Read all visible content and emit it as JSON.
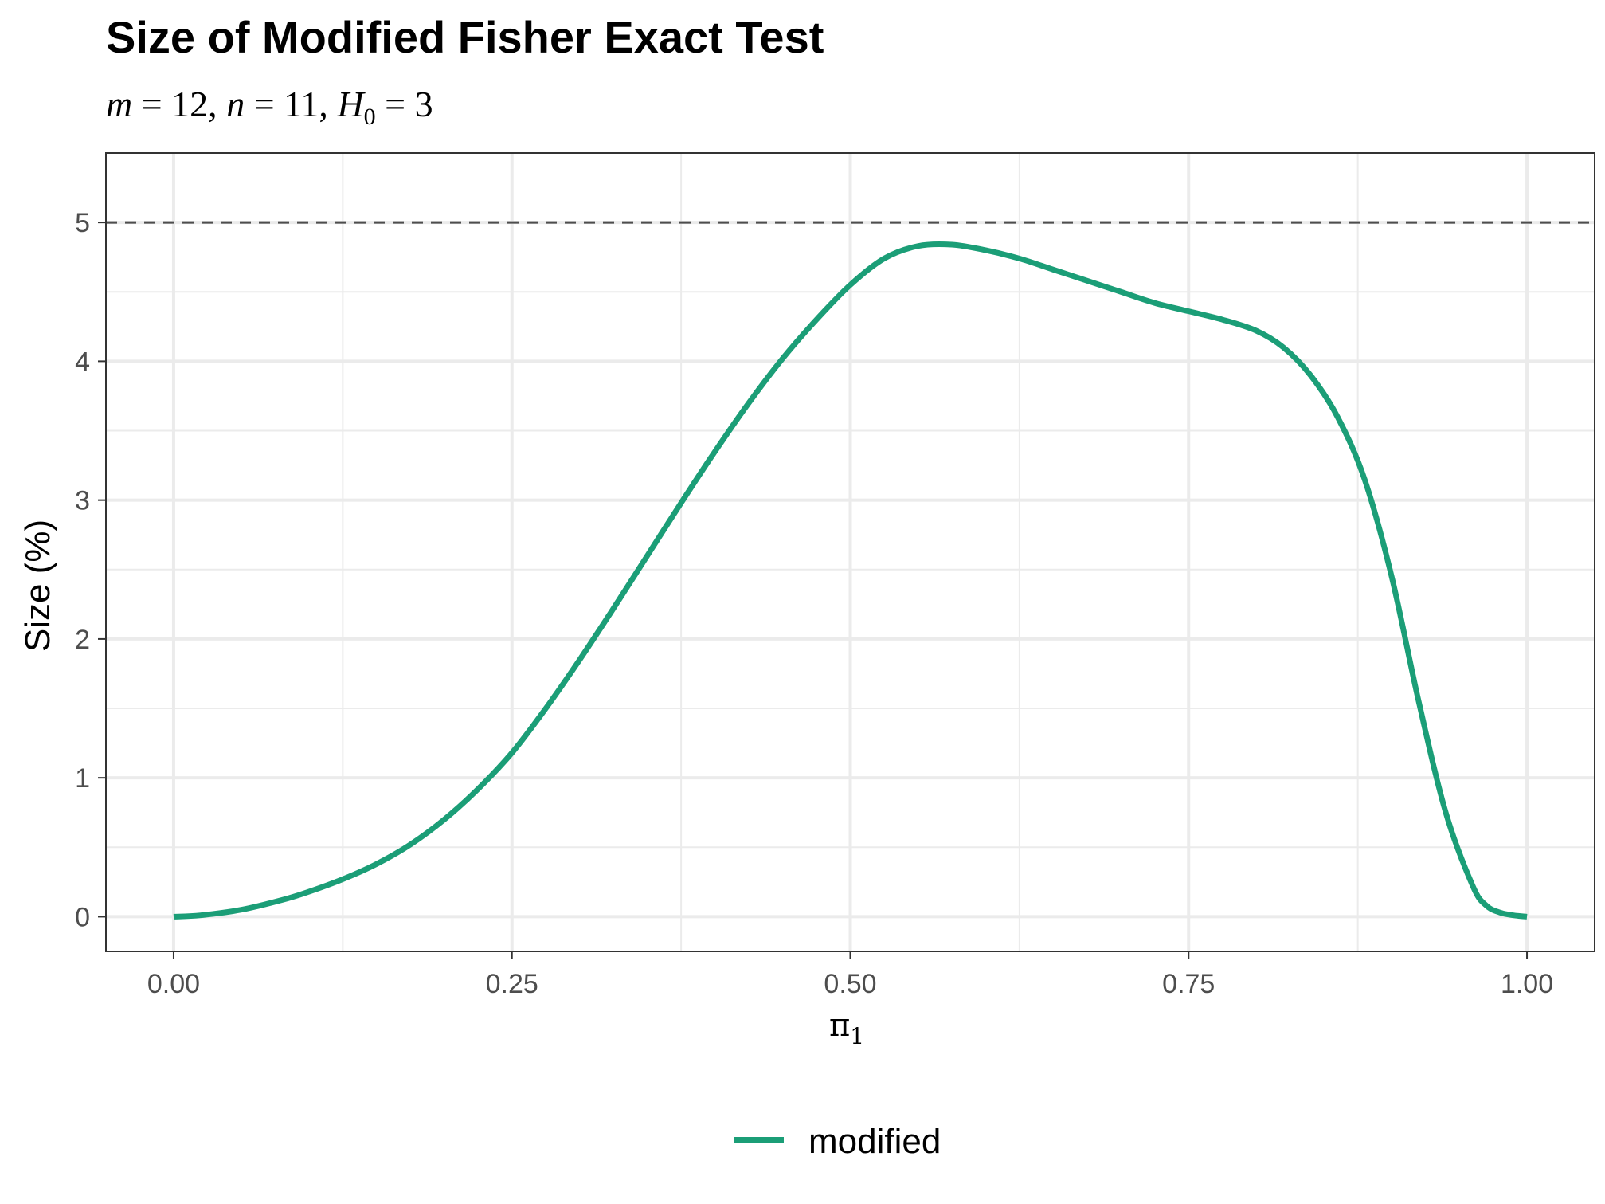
{
  "title": "Size of Modified Fisher Exact Test",
  "subtitle": {
    "m_sym": "m",
    "m_val": " = 12, ",
    "n_sym": "n",
    "n_val": " = 11, ",
    "h_sym": "H",
    "h_sub": "0",
    "h_val": " = 3"
  },
  "colors": {
    "line": "#1b9e77",
    "reference": "#4d4d4d",
    "grid": "#ebebeb",
    "panel_border": "#333333"
  },
  "chart_data": {
    "type": "line",
    "title": "Size of Modified Fisher Exact Test",
    "subtitle": "m = 12, n = 11, H0 = 3",
    "xlabel": "π1",
    "xlabel_sym": "π",
    "xlabel_sub": "1",
    "ylabel": "Size (%)",
    "xlim": [
      -0.05,
      1.05
    ],
    "ylim": [
      -0.25,
      5.5
    ],
    "x_ticks": [
      0,
      0.25,
      0.5,
      0.75,
      1
    ],
    "x_tick_labels": [
      "0.00",
      "0.25",
      "0.50",
      "0.75",
      "1.00"
    ],
    "y_ticks": [
      0,
      1,
      2,
      3,
      4,
      5
    ],
    "y_tick_labels": [
      "0",
      "1",
      "2",
      "3",
      "4",
      "5"
    ],
    "grid": true,
    "reference_line": {
      "y": 5,
      "style": "dashed"
    },
    "legend": {
      "position": "bottom",
      "entries": [
        "modified"
      ]
    },
    "series": [
      {
        "name": "modified",
        "x": [
          0,
          0.02,
          0.05,
          0.08,
          0.1,
          0.125,
          0.15,
          0.175,
          0.2,
          0.225,
          0.25,
          0.275,
          0.3,
          0.325,
          0.35,
          0.375,
          0.4,
          0.425,
          0.45,
          0.475,
          0.5,
          0.525,
          0.55,
          0.575,
          0.6,
          0.625,
          0.65,
          0.675,
          0.7,
          0.725,
          0.75,
          0.775,
          0.8,
          0.82,
          0.84,
          0.86,
          0.88,
          0.9,
          0.92,
          0.94,
          0.96,
          0.97,
          0.98,
          0.99,
          1
        ],
        "y": [
          0,
          0.01,
          0.05,
          0.12,
          0.18,
          0.27,
          0.38,
          0.52,
          0.7,
          0.92,
          1.18,
          1.5,
          1.85,
          2.22,
          2.6,
          2.98,
          3.35,
          3.7,
          4.02,
          4.3,
          4.55,
          4.74,
          4.83,
          4.84,
          4.8,
          4.74,
          4.66,
          4.58,
          4.5,
          4.42,
          4.36,
          4.3,
          4.22,
          4.1,
          3.9,
          3.6,
          3.15,
          2.45,
          1.55,
          0.75,
          0.22,
          0.08,
          0.03,
          0.01,
          0
        ]
      }
    ]
  }
}
